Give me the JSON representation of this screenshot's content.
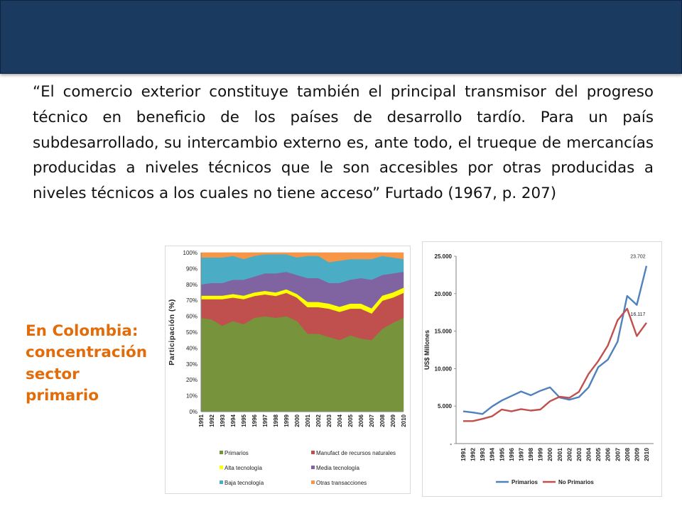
{
  "slide": {
    "quote": "“El comercio exterior constituye también el principal transmisor del progreso técnico en beneficio de los países de desarrollo tardío. Para un país subdesarrollado, su intercambio externo es, ante todo, el trueque de mercancías producidas a niveles técnicos que le son accesibles por otras producidas a niveles técnicos a los cuales no tiene acceso” Furtado (1967, p. 207)",
    "side_label": [
      "En Colombia:",
      "concentración",
      "sector",
      "primario"
    ]
  },
  "colors": {
    "banner": "#1b3a5f",
    "accent": "#e36c0a"
  },
  "chart_data": [
    {
      "type": "area",
      "stacked": true,
      "ylabel": "Participación (%)",
      "xlabel": "",
      "ylim": [
        0,
        100
      ],
      "y_ticks": [
        "0%",
        "10%",
        "20%",
        "30%",
        "40%",
        "50%",
        "60%",
        "70%",
        "80%",
        "90%",
        "100%"
      ],
      "categories": [
        "1991",
        "1992",
        "1993",
        "1994",
        "1995",
        "1996",
        "1997",
        "1998",
        "1999",
        "2000",
        "2001",
        "2002",
        "2003",
        "2004",
        "2005",
        "2006",
        "2007",
        "2008",
        "2009",
        "2010"
      ],
      "legend_position": "bottom",
      "series": [
        {
          "name": "Primarios",
          "color": "#77933c",
          "values": [
            59,
            58,
            54,
            57,
            55,
            59,
            60,
            59,
            60,
            57,
            49,
            49,
            47,
            45,
            48,
            46,
            45,
            52,
            56,
            59
          ]
        },
        {
          "name": "Manufact de recursos naturales",
          "color": "#c0504d",
          "values": [
            12,
            13,
            17,
            15,
            16,
            14,
            14,
            14,
            15,
            15,
            17,
            17,
            18,
            18,
            17,
            19,
            17,
            18,
            16,
            16
          ]
        },
        {
          "name": "Alta tecnología",
          "color": "#ffff00",
          "values": [
            2,
            2,
            2,
            2,
            2,
            2,
            2,
            2,
            2,
            2,
            3,
            3,
            3,
            3,
            3,
            3,
            3,
            3,
            3,
            3
          ]
        },
        {
          "name": "Media tecnología",
          "color": "#8064a2",
          "values": [
            7,
            8,
            8,
            9,
            10,
            10,
            11,
            12,
            11,
            12,
            15,
            15,
            13,
            15,
            15,
            16,
            18,
            13,
            12,
            10
          ]
        },
        {
          "name": "Baja tecnología",
          "color": "#4bacc6",
          "values": [
            17,
            16,
            16,
            15,
            13,
            13,
            12,
            12,
            11,
            11,
            14,
            14,
            13,
            14,
            13,
            12,
            13,
            12,
            10,
            8
          ]
        },
        {
          "name": "Otras transacciones",
          "color": "#f79646",
          "values": [
            3,
            3,
            3,
            2,
            4,
            2,
            1,
            1,
            1,
            3,
            2,
            2,
            6,
            5,
            4,
            4,
            4,
            2,
            3,
            4
          ]
        }
      ]
    },
    {
      "type": "line",
      "ylabel": "US$ Millones",
      "xlabel": "",
      "ylim": [
        0,
        25000
      ],
      "y_ticks": [
        "-",
        "5.000",
        "10.000",
        "15.000",
        "20.000",
        "25.000"
      ],
      "categories": [
        "1991",
        "1992",
        "1993",
        "1994",
        "1995",
        "1996",
        "1997",
        "1998",
        "1999",
        "2000",
        "2001",
        "2002",
        "2003",
        "2004",
        "2005",
        "2006",
        "2007",
        "2008",
        "2009",
        "2010"
      ],
      "legend_position": "bottom",
      "series": [
        {
          "name": "Primarios",
          "color": "#4f81bd",
          "values": [
            4300,
            4150,
            3950,
            4950,
            5750,
            6350,
            6950,
            6450,
            7050,
            7500,
            6150,
            5850,
            6200,
            7500,
            10200,
            11200,
            13600,
            19700,
            18500,
            23702
          ]
        },
        {
          "name": "No Primarios",
          "color": "#c0504d",
          "values": [
            3000,
            3000,
            3300,
            3650,
            4550,
            4300,
            4600,
            4400,
            4550,
            5650,
            6250,
            6100,
            6900,
            9300,
            11000,
            13100,
            16450,
            18000,
            14350,
            16117
          ]
        }
      ],
      "data_labels": [
        "23.702",
        "16.117"
      ]
    }
  ]
}
